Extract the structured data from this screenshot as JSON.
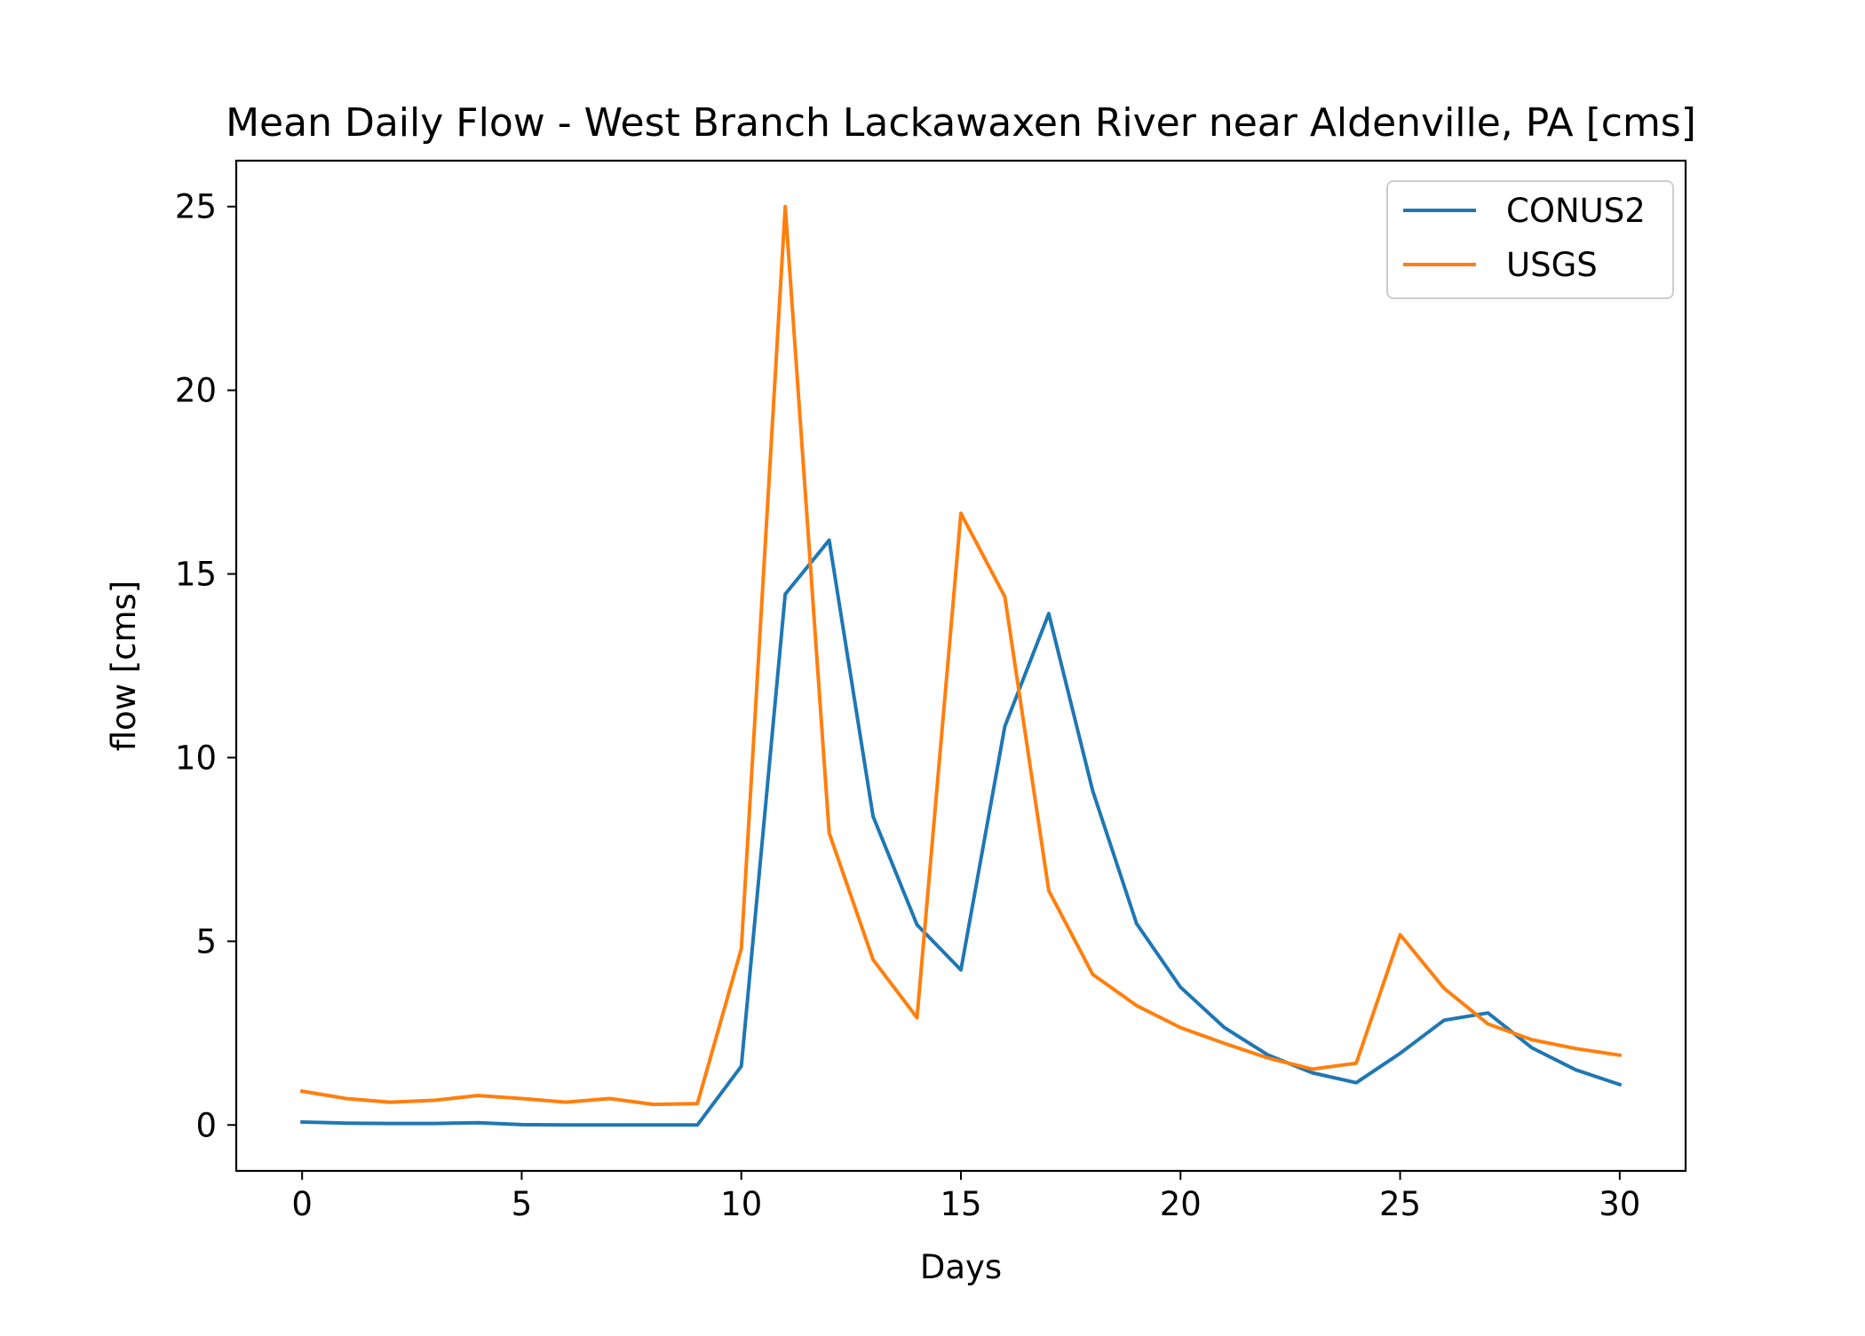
{
  "chart_data": {
    "type": "line",
    "title": "Mean Daily Flow - West Branch Lackawaxen River near Aldenville, PA [cms]",
    "xlabel": "Days",
    "ylabel": "flow [cms]",
    "xlim": [
      -1.5,
      31.5
    ],
    "ylim": [
      -1.25,
      26.25
    ],
    "xticks": [
      0,
      5,
      10,
      15,
      20,
      25,
      30
    ],
    "yticks": [
      0,
      5,
      10,
      15,
      20,
      25
    ],
    "grid": false,
    "legend_position": "top-right",
    "x": [
      0,
      1,
      2,
      3,
      4,
      5,
      6,
      7,
      8,
      9,
      10,
      11,
      12,
      13,
      14,
      15,
      16,
      17,
      18,
      19,
      20,
      21,
      22,
      23,
      24,
      25,
      26,
      27,
      28,
      29,
      30
    ],
    "series": [
      {
        "name": "CONUS2",
        "color": "#1f77b4",
        "values": [
          0.08,
          0.05,
          0.04,
          0.04,
          0.06,
          0.01,
          0.0,
          0.0,
          0.0,
          0.0,
          1.6,
          14.45,
          15.92,
          8.4,
          5.45,
          4.22,
          10.85,
          13.92,
          9.1,
          5.48,
          3.75,
          2.65,
          1.9,
          1.42,
          1.15,
          1.95,
          2.85,
          3.05,
          2.1,
          1.5,
          1.1
        ]
      },
      {
        "name": "USGS",
        "color": "#ff7f0e",
        "values": [
          0.92,
          0.72,
          0.62,
          0.67,
          0.8,
          0.72,
          0.62,
          0.72,
          0.56,
          0.58,
          4.8,
          25.0,
          7.95,
          4.5,
          2.92,
          16.65,
          14.38,
          6.38,
          4.1,
          3.25,
          2.65,
          2.22,
          1.82,
          1.52,
          1.68,
          5.18,
          3.72,
          2.75,
          2.32,
          2.08,
          1.9
        ]
      }
    ]
  }
}
